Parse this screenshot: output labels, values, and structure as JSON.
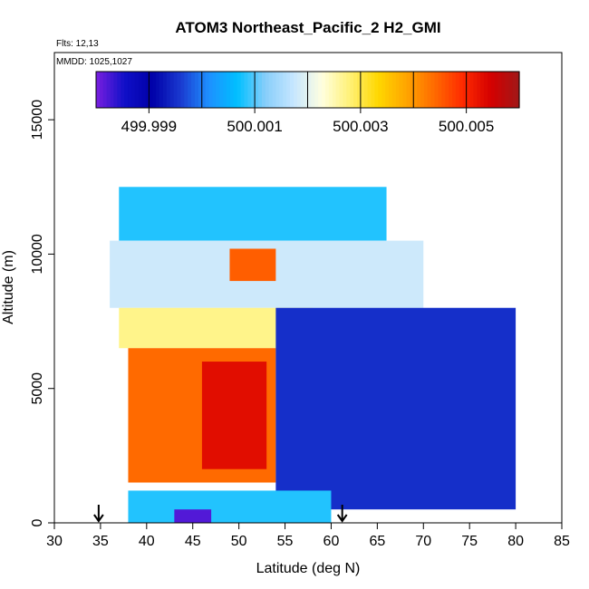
{
  "chart_data": {
    "type": "heatmap",
    "title": "ATOM3 Northeast_Pacific_2 H2_GMI",
    "notes": [
      "Flts: 12,13",
      "MMDD: 1025,1027"
    ],
    "xlabel": "Latitude (deg N)",
    "ylabel": "Altitude (m)",
    "xlim": [
      30,
      85
    ],
    "ylim": [
      0,
      17500
    ],
    "x_ticks": [
      30,
      35,
      40,
      45,
      50,
      55,
      60,
      65,
      70,
      75,
      80,
      85
    ],
    "y_ticks": [
      0,
      5000,
      10000,
      15000
    ],
    "grid": false,
    "colorbar": {
      "placement": "top",
      "range": [
        499.998,
        500.006
      ],
      "tick_values": [
        499.999,
        500.001,
        500.003,
        500.005
      ],
      "tick_labels": [
        "499.999",
        "500.001",
        "500.003",
        "500.005"
      ],
      "colors": [
        "#7a1fe0",
        "#1010c8",
        "#0000a8",
        "#1a3ad0",
        "#1e90ff",
        "#00bfff",
        "#87cefa",
        "#c6e6ff",
        "#ffffe0",
        "#fff176",
        "#ffd700",
        "#ffa500",
        "#ff6a00",
        "#ff2a00",
        "#d40000",
        "#a01818"
      ]
    },
    "markers": [
      {
        "x": 34.8,
        "label": "arrow"
      },
      {
        "x": 61.2,
        "label": "arrow"
      }
    ],
    "regions": [
      {
        "lat": [
          37,
          66
        ],
        "alt": [
          10500,
          12500
        ],
        "value": 500.0008
      },
      {
        "lat": [
          36,
          70
        ],
        "alt": [
          8000,
          10500
        ],
        "value": 500.0018
      },
      {
        "lat": [
          49,
          54
        ],
        "alt": [
          9000,
          10200
        ],
        "value": 500.0045
      },
      {
        "lat": [
          37,
          58
        ],
        "alt": [
          6500,
          8000
        ],
        "value": 500.0027
      },
      {
        "lat": [
          38,
          54
        ],
        "alt": [
          1500,
          6500
        ],
        "value": 500.0044
      },
      {
        "lat": [
          46,
          53
        ],
        "alt": [
          2000,
          6000
        ],
        "value": 500.0053
      },
      {
        "lat": [
          54,
          80
        ],
        "alt": [
          500,
          8000
        ],
        "value": 499.9995
      },
      {
        "lat": [
          38,
          60
        ],
        "alt": [
          0,
          1200
        ],
        "value": 500.0008
      },
      {
        "lat": [
          43,
          47
        ],
        "alt": [
          0,
          500
        ],
        "value": 499.9982
      }
    ]
  }
}
